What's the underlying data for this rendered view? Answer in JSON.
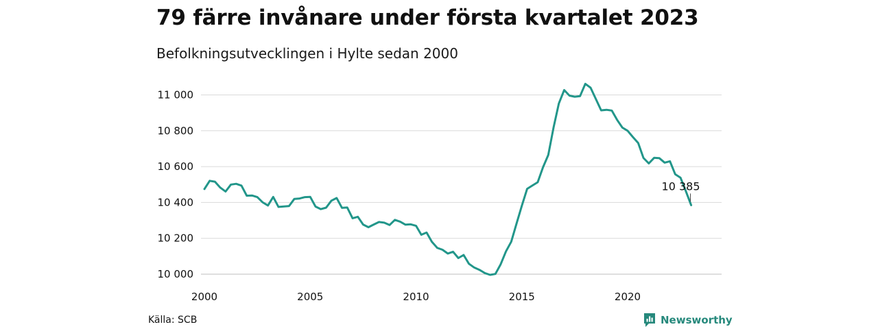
{
  "header": {
    "title": "79 färre invånare under första kvartalet 2023",
    "subtitle": "Befolkningsutvecklingen i Hylte sedan 2000"
  },
  "footer": {
    "source": "Källa: SCB",
    "brand": "Newsworthy",
    "brand_icon": "newsworthy-logo-icon"
  },
  "colors": {
    "line": "#22968a",
    "brand": "#26897c",
    "grid": "#d9d9d9"
  },
  "chart_data": {
    "type": "line",
    "title": "79 färre invånare under första kvartalet 2023",
    "subtitle": "Befolkningsutvecklingen i Hylte sedan 2000",
    "xlabel": "",
    "ylabel": "",
    "x_ticks": [
      2000,
      2005,
      2010,
      2015,
      2020
    ],
    "y_ticks": [
      10000,
      10200,
      10400,
      10600,
      10800,
      11000
    ],
    "y_tick_labels": [
      "10 000",
      "10 200",
      "10 400",
      "10 600",
      "10 800",
      "11 000"
    ],
    "xlim": [
      2000,
      2024
    ],
    "ylim": [
      9960,
      11080
    ],
    "grid": "horizontal",
    "end_label": "10 385",
    "series": [
      {
        "x": [
          2000.0,
          2000.25,
          2000.5,
          2000.75,
          2001.0,
          2001.25,
          2001.5,
          2001.75,
          2002.0,
          2002.25,
          2002.5,
          2002.75,
          2003.0,
          2003.25,
          2003.5,
          2003.75,
          2004.0,
          2004.25,
          2004.5,
          2004.75,
          2005.0,
          2005.25,
          2005.5,
          2005.75,
          2006.0,
          2006.25,
          2006.5,
          2006.75,
          2007.0,
          2007.25,
          2007.5,
          2007.75,
          2008.0,
          2008.25,
          2008.5,
          2008.75,
          2009.0,
          2009.25,
          2009.5,
          2009.75,
          2010.0,
          2010.25,
          2010.5,
          2010.75,
          2011.0,
          2011.25,
          2011.5,
          2011.75,
          2012.0,
          2012.25,
          2012.5,
          2012.75,
          2013.0,
          2013.25,
          2013.5,
          2013.75,
          2014.0,
          2014.25,
          2014.5,
          2014.75,
          2015.0,
          2015.25,
          2015.5,
          2015.75,
          2016.0,
          2016.25,
          2016.5,
          2016.75,
          2017.0,
          2017.25,
          2017.5,
          2017.75,
          2018.0,
          2018.25,
          2018.5,
          2018.75,
          2019.0,
          2019.25,
          2019.5,
          2019.75,
          2020.0,
          2020.25,
          2020.5,
          2020.75,
          2021.0,
          2021.25,
          2021.5,
          2021.75,
          2022.0,
          2022.25,
          2022.5,
          2022.75,
          2023.0
        ],
        "values": [
          10475,
          10521,
          10516,
          10483,
          10461,
          10500,
          10504,
          10494,
          10438,
          10439,
          10430,
          10401,
          10383,
          10431,
          10375,
          10378,
          10380,
          10420,
          10422,
          10430,
          10431,
          10377,
          10363,
          10371,
          10410,
          10425,
          10370,
          10372,
          10312,
          10320,
          10277,
          10262,
          10277,
          10291,
          10287,
          10274,
          10303,
          10293,
          10276,
          10278,
          10270,
          10220,
          10232,
          10181,
          10147,
          10136,
          10115,
          10125,
          10090,
          10107,
          10058,
          10037,
          10024,
          10006,
          9996,
          10001,
          10055,
          10127,
          10181,
          10282,
          10382,
          10476,
          10495,
          10513,
          10596,
          10665,
          10818,
          10952,
          11027,
          10996,
          10990,
          10993,
          11062,
          11040,
          10977,
          10914,
          10917,
          10913,
          10861,
          10818,
          10800,
          10765,
          10732,
          10648,
          10618,
          10649,
          10647,
          10622,
          10630,
          10557,
          10538,
          10464,
          10385
        ]
      }
    ]
  }
}
